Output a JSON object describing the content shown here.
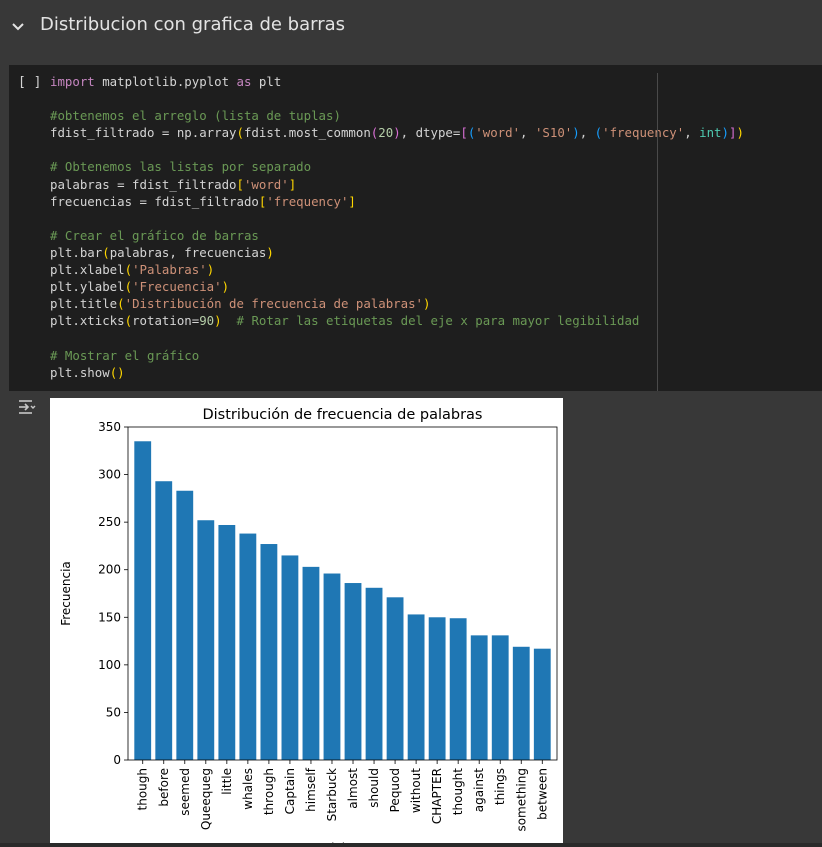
{
  "section": {
    "title": "Distribucion con grafica de barras",
    "toggle_icon": "chevron-down-icon"
  },
  "cell": {
    "run_indicator": "[ ]",
    "code_lines": [
      "import matplotlib.pyplot as plt",
      "",
      "#obtenemos el arreglo (lista de tuplas)",
      "fdist_filtrado = np.array(fdist.most_common(20), dtype=[('word', 'S10'), ('frequency', int)])",
      "",
      "# Obtenemos las listas por separado",
      "palabras = fdist_filtrado['word']",
      "frecuencias = fdist_filtrado['frequency']",
      "",
      "# Crear el gráfico de barras",
      "plt.bar(palabras, frecuencias)",
      "plt.xlabel('Palabras')",
      "plt.ylabel('Frecuencia')",
      "plt.title('Distribución de frecuencia de palabras')",
      "plt.xticks(rotation=90)  # Rotar las etiquetas del eje x para mayor legibilidad",
      "",
      "# Mostrar el gráfico",
      "plt.show()"
    ]
  },
  "output": {
    "toggle_icon": "output-toggle-icon"
  },
  "colors": {
    "bar": "#1f77b4",
    "background": "#383838",
    "cell_background": "#1e1e1e"
  },
  "chart_data": {
    "type": "bar",
    "title": "Distribución de frecuencia de palabras",
    "xlabel": "Palabras",
    "ylabel": "Frecuencia",
    "categories": [
      "though",
      "before",
      "seemed",
      "Queequeg",
      "little",
      "whales",
      "through",
      "Captain",
      "himself",
      "Starbuck",
      "almost",
      "should",
      "Pequod",
      "without",
      "CHAPTER",
      "thought",
      "against",
      "things",
      "something",
      "between"
    ],
    "values": [
      335,
      293,
      283,
      252,
      247,
      238,
      227,
      215,
      203,
      196,
      186,
      181,
      171,
      153,
      150,
      149,
      131,
      131,
      119,
      117
    ],
    "ylim": [
      0,
      350
    ],
    "yticks": [
      0,
      50,
      100,
      150,
      200,
      250,
      300,
      350
    ],
    "grid": false,
    "x_tick_rotation": 90
  }
}
